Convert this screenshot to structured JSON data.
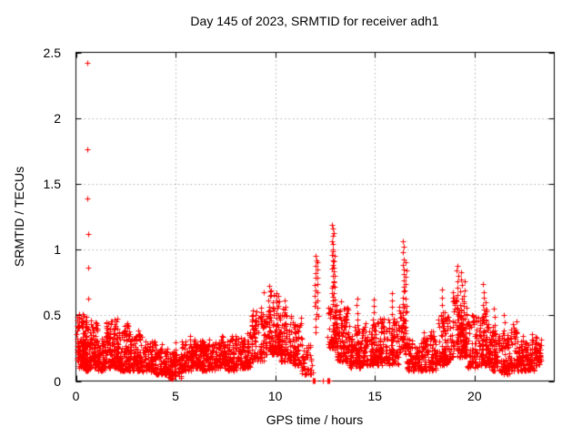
{
  "chart_data": {
    "type": "scatter",
    "title": "Day 145 of 2023, SRMTID for receiver adh1",
    "xlabel": "GPS time / hours",
    "ylabel": "SRMTID / TECUs",
    "xlim": [
      0,
      24
    ],
    "ylim": [
      0,
      2.5
    ],
    "xticks": [
      0,
      5,
      10,
      15,
      20
    ],
    "xtick_labels": [
      "0",
      "5",
      "10",
      "15",
      "20"
    ],
    "yticks": [
      0,
      0.5,
      1,
      1.5,
      2,
      2.5
    ],
    "ytick_labels": [
      "0",
      "0.5",
      "1",
      "1.5",
      "2",
      "2.5"
    ],
    "grid": true,
    "legend": "none",
    "background_color": "#ffffff",
    "axis_color": "#000000",
    "text_color": "#000000",
    "grid_color": "#b0b0b0",
    "marker": {
      "symbol": "plus",
      "color": "#ff0000",
      "size": 7
    },
    "series_name": "SRMTID",
    "outliers": [
      [
        0.58,
        2.42
      ],
      [
        0.58,
        1.76
      ],
      [
        0.57,
        1.39
      ],
      [
        0.6,
        1.12
      ],
      [
        0.62,
        0.86
      ],
      [
        0.6,
        0.63
      ]
    ],
    "zero_clusters": [
      [
        11.95,
        5
      ],
      [
        12.4,
        1
      ],
      [
        12.65,
        5
      ]
    ],
    "band_segments": [
      [
        0.03,
        0.15,
        0.15,
        0.5,
        22
      ],
      [
        0.15,
        0.45,
        0.1,
        0.5,
        60
      ],
      [
        0.45,
        0.75,
        0.08,
        0.48,
        60
      ],
      [
        0.75,
        1.1,
        0.1,
        0.42,
        55
      ],
      [
        1.1,
        1.5,
        0.08,
        0.3,
        55
      ],
      [
        1.5,
        2.1,
        0.1,
        0.46,
        85
      ],
      [
        2.1,
        2.7,
        0.08,
        0.42,
        80
      ],
      [
        2.7,
        3.3,
        0.08,
        0.36,
        75
      ],
      [
        3.3,
        4.0,
        0.07,
        0.28,
        80
      ],
      [
        4.0,
        4.6,
        0.05,
        0.25,
        65
      ],
      [
        4.6,
        5.3,
        0.02,
        0.22,
        70
      ],
      [
        5.3,
        5.8,
        0.08,
        0.3,
        55
      ],
      [
        5.8,
        6.3,
        0.1,
        0.3,
        60
      ],
      [
        6.3,
        7.0,
        0.08,
        0.28,
        75
      ],
      [
        7.0,
        7.6,
        0.1,
        0.3,
        65
      ],
      [
        7.6,
        8.3,
        0.08,
        0.32,
        75
      ],
      [
        8.3,
        8.8,
        0.1,
        0.36,
        55
      ],
      [
        8.8,
        9.4,
        0.15,
        0.55,
        70
      ],
      [
        9.4,
        10.3,
        0.2,
        0.68,
        110
      ],
      [
        10.3,
        10.8,
        0.15,
        0.55,
        60
      ],
      [
        10.8,
        11.3,
        0.12,
        0.45,
        55
      ],
      [
        11.3,
        11.9,
        0.05,
        0.28,
        35
      ],
      [
        12.6,
        13.1,
        0.25,
        0.55,
        45
      ],
      [
        13.1,
        13.7,
        0.15,
        0.55,
        70
      ],
      [
        13.7,
        14.3,
        0.1,
        0.4,
        70
      ],
      [
        14.3,
        15.2,
        0.12,
        0.45,
        95
      ],
      [
        15.2,
        16.2,
        0.12,
        0.48,
        105
      ],
      [
        16.2,
        16.6,
        0.2,
        0.55,
        40
      ],
      [
        16.6,
        17.4,
        0.08,
        0.3,
        80
      ],
      [
        17.4,
        18.1,
        0.08,
        0.35,
        75
      ],
      [
        18.1,
        18.8,
        0.12,
        0.5,
        80
      ],
      [
        18.8,
        19.6,
        0.18,
        0.65,
        95
      ],
      [
        19.6,
        20.2,
        0.1,
        0.5,
        65
      ],
      [
        20.2,
        20.7,
        0.12,
        0.55,
        55
      ],
      [
        20.7,
        21.2,
        0.08,
        0.4,
        55
      ],
      [
        21.2,
        21.8,
        0.05,
        0.35,
        60
      ],
      [
        21.8,
        22.4,
        0.08,
        0.42,
        65
      ],
      [
        22.4,
        23.0,
        0.08,
        0.32,
        65
      ],
      [
        23.0,
        23.35,
        0.12,
        0.3,
        40
      ]
    ],
    "spikes": [
      [
        0.35,
        0.2,
        0.5,
        8
      ],
      [
        0.52,
        0.15,
        0.48,
        6
      ],
      [
        1.55,
        0.15,
        0.44,
        6
      ],
      [
        1.95,
        0.15,
        0.46,
        8
      ],
      [
        2.55,
        0.12,
        0.42,
        6
      ],
      [
        4.95,
        0.04,
        0.3,
        6
      ],
      [
        5.75,
        0.12,
        0.35,
        6
      ],
      [
        7.9,
        0.1,
        0.33,
        5
      ],
      [
        8.6,
        0.12,
        0.36,
        5
      ],
      [
        9.7,
        0.3,
        0.73,
        12
      ],
      [
        10.05,
        0.25,
        0.65,
        10
      ],
      [
        10.5,
        0.2,
        0.62,
        8
      ],
      [
        12.02,
        0.38,
        0.96,
        14
      ],
      [
        12.13,
        0.5,
        0.9,
        8
      ],
      [
        12.88,
        0.55,
        1.19,
        22
      ],
      [
        12.97,
        0.25,
        0.95,
        16
      ],
      [
        13.3,
        0.2,
        0.6,
        8
      ],
      [
        13.5,
        0.2,
        0.55,
        6
      ],
      [
        14.1,
        0.15,
        0.63,
        10
      ],
      [
        14.95,
        0.2,
        0.61,
        10
      ],
      [
        15.85,
        0.2,
        0.66,
        10
      ],
      [
        16.42,
        0.25,
        1.06,
        20
      ],
      [
        16.53,
        0.3,
        0.9,
        12
      ],
      [
        17.9,
        0.1,
        0.38,
        6
      ],
      [
        18.4,
        0.15,
        0.7,
        10
      ],
      [
        19.15,
        0.3,
        0.88,
        14
      ],
      [
        19.32,
        0.3,
        0.82,
        12
      ],
      [
        19.5,
        0.25,
        0.75,
        10
      ],
      [
        20.45,
        0.2,
        0.73,
        12
      ],
      [
        20.57,
        0.2,
        0.6,
        8
      ],
      [
        21.0,
        0.1,
        0.55,
        8
      ],
      [
        21.5,
        0.08,
        0.5,
        8
      ],
      [
        22.1,
        0.1,
        0.45,
        6
      ]
    ]
  }
}
